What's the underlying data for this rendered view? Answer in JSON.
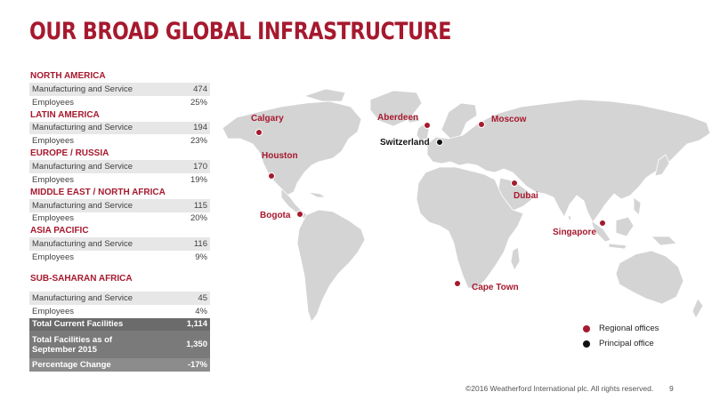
{
  "title": "OUR BROAD GLOBAL INFRASTRUCTURE",
  "regions": [
    {
      "name": "NORTH AMERICA",
      "rows": [
        {
          "label": "Manufacturing and Service",
          "value": "474"
        },
        {
          "label": "Employees",
          "value": "25%"
        }
      ]
    },
    {
      "name": "LATIN AMERICA",
      "rows": [
        {
          "label": "Manufacturing and Service",
          "value": "194"
        },
        {
          "label": "Employees",
          "value": "23%"
        }
      ]
    },
    {
      "name": "EUROPE / RUSSIA",
      "rows": [
        {
          "label": "Manufacturing and Service",
          "value": "170"
        },
        {
          "label": "Employees",
          "value": "19%"
        }
      ]
    },
    {
      "name": "MIDDLE EAST / NORTH AFRICA",
      "rows": [
        {
          "label": "Manufacturing and Service",
          "value": "115"
        },
        {
          "label": "Employees",
          "value": "20%"
        }
      ]
    },
    {
      "name": "ASIA PACIFIC",
      "rows": [
        {
          "label": "Manufacturing and Service",
          "value": "116"
        },
        {
          "label": "Employees",
          "value": "9%"
        }
      ]
    },
    {
      "name": "SUB-SAHARAN AFRICA",
      "rows": [
        {
          "label": "Manufacturing and Service",
          "value": "45"
        },
        {
          "label": "Employees",
          "value": "4%"
        }
      ]
    }
  ],
  "totals": [
    {
      "label": "Total Current Facilities",
      "value": "1,114"
    },
    {
      "label": "Total Facilities as of September 2015",
      "value": "1,350"
    },
    {
      "label": "Percentage Change",
      "value": "-17%"
    }
  ],
  "cities": {
    "calgary": "Calgary",
    "houston": "Houston",
    "bogota": "Bogota",
    "aberdeen": "Aberdeen",
    "switzerland": "Switzerland",
    "moscow": "Moscow",
    "dubai": "Dubai",
    "singapore": "Singapore",
    "cape_town": "Cape Town"
  },
  "legend": {
    "regional": "Regional offices",
    "principal": "Principal office"
  },
  "colors": {
    "accent": "#a6192e",
    "principal": "#111111",
    "land": "#d4d4d4"
  },
  "footer": "©2016 Weatherford International plc.  All rights reserved.",
  "page_number": "9"
}
